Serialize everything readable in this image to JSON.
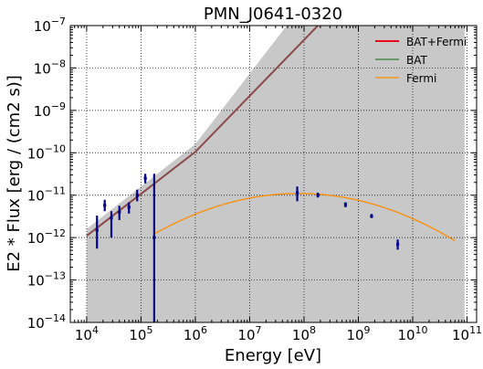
{
  "chart_data": {
    "type": "scatter",
    "title": "PMN_J0641-0320",
    "xlabel": "Energy [eV]",
    "ylabel": "E2 * Flux [erg / (cm2 s)]",
    "xscale": "log",
    "yscale": "log",
    "xlim": [
      5000,
      150000000000
    ],
    "ylim": [
      1e-14,
      1e-07
    ],
    "x_ticks": [
      {
        "value": 10000,
        "base": "10",
        "exp": "4"
      },
      {
        "value": 100000,
        "base": "10",
        "exp": "5"
      },
      {
        "value": 1000000,
        "base": "10",
        "exp": "6"
      },
      {
        "value": 10000000,
        "base": "10",
        "exp": "7"
      },
      {
        "value": 100000000,
        "base": "10",
        "exp": "8"
      },
      {
        "value": 1000000000,
        "base": "10",
        "exp": "9"
      },
      {
        "value": 10000000000,
        "base": "10",
        "exp": "10"
      },
      {
        "value": 100000000000,
        "base": "10",
        "exp": "11"
      }
    ],
    "y_ticks": [
      {
        "value": 1e-14,
        "base": "10",
        "exp": "−14"
      },
      {
        "value": 1e-13,
        "base": "10",
        "exp": "−13"
      },
      {
        "value": 1e-12,
        "base": "10",
        "exp": "−12"
      },
      {
        "value": 1e-11,
        "base": "10",
        "exp": "−11"
      },
      {
        "value": 1e-10,
        "base": "10",
        "exp": "−10"
      },
      {
        "value": 1e-09,
        "base": "10",
        "exp": "−9"
      },
      {
        "value": 1e-08,
        "base": "10",
        "exp": "−8"
      },
      {
        "value": 1e-07,
        "base": "10",
        "exp": "−7"
      }
    ],
    "grid": true,
    "legend_position": "top-right",
    "legend": [
      {
        "label": "BAT+Fermi",
        "color": "#e8001c"
      },
      {
        "label": "BAT",
        "color": "#2e7d32"
      },
      {
        "label": "Fermi",
        "color": "#ff8c00"
      }
    ],
    "uncertainty_band": {
      "color": "#c8c8c8",
      "x_range": [
        10000,
        90000000000
      ],
      "upper": [
        {
          "x": 10000,
          "y": 1.6e-12
        },
        {
          "x": 1000000,
          "y": 1.6e-10
        },
        {
          "x": 48000000,
          "y": 1e-07
        }
      ],
      "lower_floor": 1e-14
    },
    "model_line": {
      "color": "#8b4a4a",
      "points": [
        {
          "x": 10000,
          "y": 1.1e-12
        },
        {
          "x": 1000000,
          "y": 1.05e-10
        },
        {
          "x": 180000000,
          "y": 1e-07
        }
      ]
    },
    "fermi_curve": {
      "color": "#ff8c00",
      "peak_x": 80000000,
      "peak_y": 1.1e-11,
      "curvature": 0.135,
      "x_range": [
        170000,
        60000000000
      ]
    },
    "points_color": "#00008b",
    "points": [
      {
        "x": 15500,
        "y": 1.5e-12,
        "ylo": 5.5e-13,
        "yhi": 3.3e-12
      },
      {
        "x": 21500,
        "y": 5.8e-12,
        "ylo": 4.2e-12,
        "yhi": 7.8e-12
      },
      {
        "x": 28500,
        "y": 2.9e-12,
        "ylo": 1e-12,
        "yhi": 4.2e-12
      },
      {
        "x": 40000,
        "y": 4e-12,
        "ylo": 2.6e-12,
        "yhi": 5.6e-12
      },
      {
        "x": 60000,
        "y": 5.2e-12,
        "ylo": 3.7e-12,
        "yhi": 6.8e-12
      },
      {
        "x": 85000,
        "y": 1e-11,
        "ylo": 7.2e-12,
        "yhi": 1.35e-11
      },
      {
        "x": 120000,
        "y": 2.5e-11,
        "ylo": 1.9e-11,
        "yhi": 3.2e-11
      },
      {
        "x": 175000,
        "y": 1e-12,
        "ylo": 1e-14,
        "yhi": 3.2e-11
      },
      {
        "x": 75000000,
        "y": 1.15e-11,
        "ylo": 7.2e-12,
        "yhi": 1.6e-11
      },
      {
        "x": 180000000,
        "y": 1e-11,
        "ylo": 8.8e-12,
        "yhi": 1.15e-11
      },
      {
        "x": 580000000,
        "y": 6e-12,
        "ylo": 5.2e-12,
        "yhi": 6.8e-12
      },
      {
        "x": 1750000000,
        "y": 3.2e-12,
        "ylo": 2.9e-12,
        "yhi": 3.6e-12
      },
      {
        "x": 5300000000,
        "y": 7e-13,
        "ylo": 5.2e-13,
        "yhi": 9e-13
      }
    ]
  }
}
